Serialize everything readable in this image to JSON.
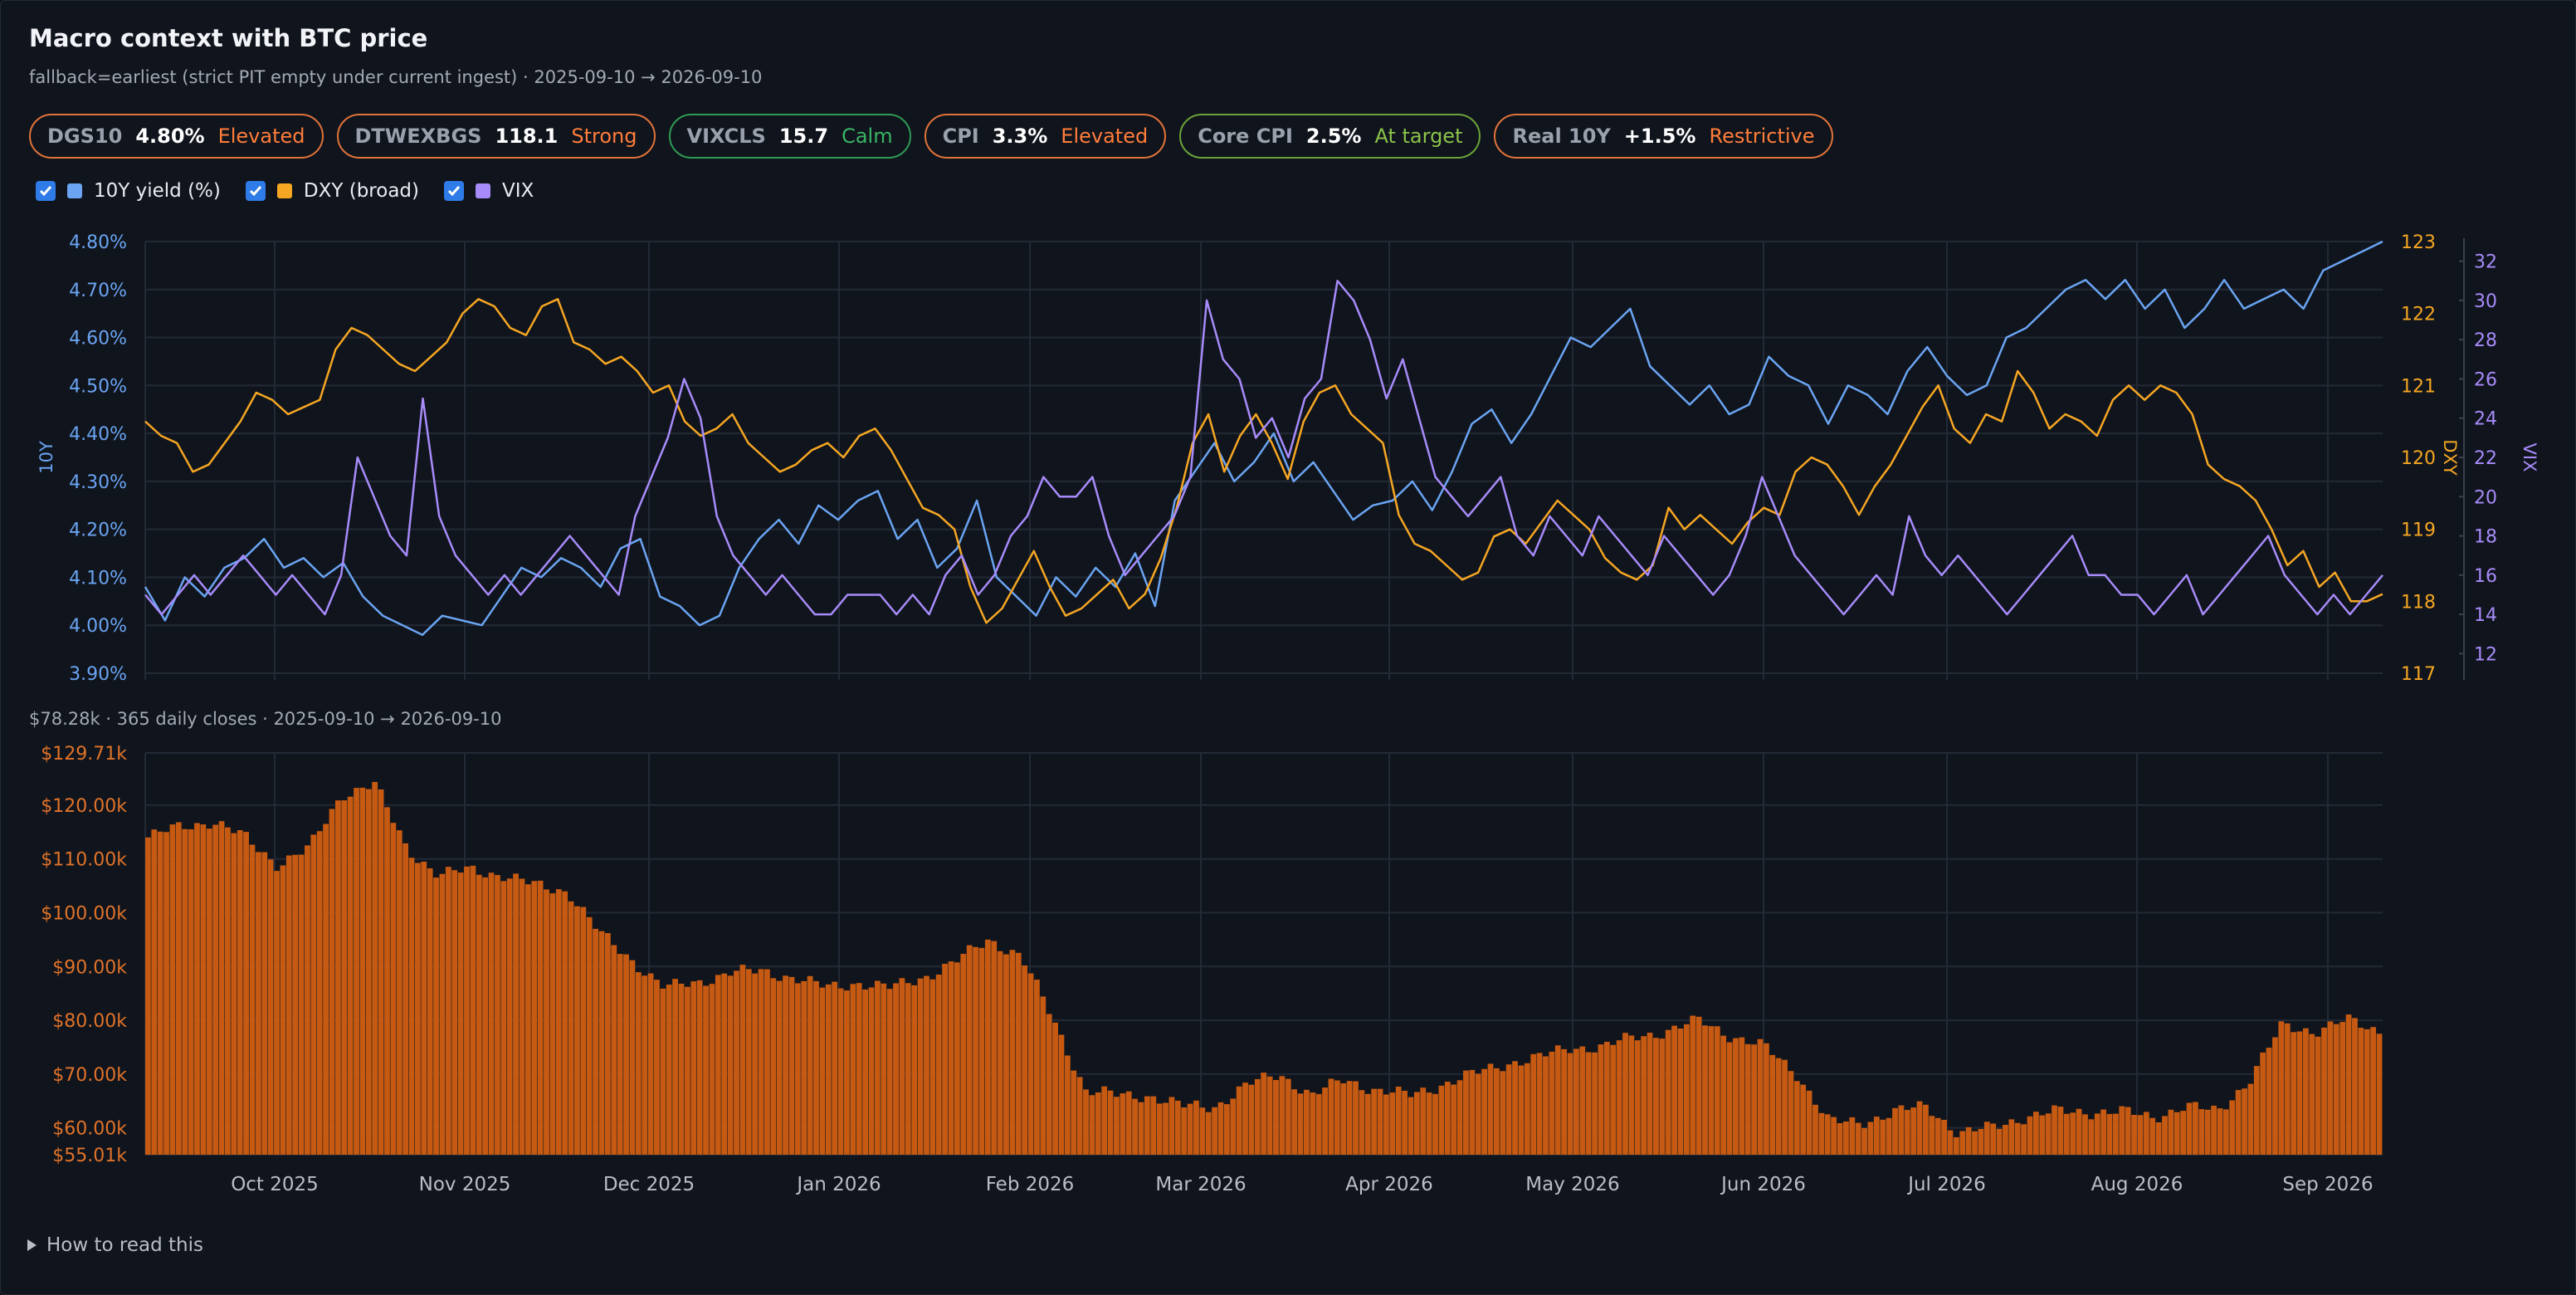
{
  "header": {
    "title": "Macro context with BTC price",
    "subtitle": "fallback=earliest (strict PIT empty under current ingest) · 2025-09-10 → 2026-09-10"
  },
  "pills": [
    {
      "key": "DGS10",
      "value": "4.80%",
      "status": "Elevated",
      "tone": "elevated"
    },
    {
      "key": "DTWEXBGS",
      "value": "118.1",
      "status": "Strong",
      "tone": "elevated"
    },
    {
      "key": "VIXCLS",
      "value": "15.7",
      "status": "Calm",
      "tone": "calm"
    },
    {
      "key": "CPI",
      "value": "3.3%",
      "status": "Elevated",
      "tone": "elevated"
    },
    {
      "key": "Core CPI",
      "value": "2.5%",
      "status": "At target",
      "tone": "target"
    },
    {
      "key": "Real 10Y",
      "value": "+1.5%",
      "status": "Restrictive",
      "tone": "elevated"
    }
  ],
  "legend": [
    {
      "label": "10Y yield (%)",
      "color": "#6aa4f2",
      "checked": true
    },
    {
      "label": "DXY (broad)",
      "color": "#f5a623",
      "checked": true
    },
    {
      "label": "VIX",
      "color": "#a78bfa",
      "checked": true
    }
  ],
  "btc_caption": "$78.28k · 365 daily closes · 2025-09-10 → 2026-09-10",
  "how_to_read": "How to read this",
  "colors": {
    "yield": "#6aa4f2",
    "dxy": "#f5a623",
    "vix": "#a78bfa",
    "btc": "#c65a12",
    "grid": "#222a36"
  },
  "chart_data": [
    {
      "type": "line",
      "x_start": "2025-09-10",
      "x_end": "2026-09-10",
      "x_ticks": [
        "Oct 2025",
        "Nov 2025",
        "Dec 2025",
        "Jan 2026",
        "Feb 2026",
        "Mar 2026",
        "Apr 2026",
        "May 2026",
        "Jun 2026",
        "Jul 2026",
        "Aug 2026",
        "Sep 2026"
      ],
      "axes": {
        "left": {
          "label": "10Y",
          "ylim": [
            3.9,
            4.8
          ],
          "ticks": [
            "3.90%",
            "4.00%",
            "4.10%",
            "4.20%",
            "4.30%",
            "4.40%",
            "4.50%",
            "4.60%",
            "4.70%",
            "4.80%"
          ]
        },
        "right1": {
          "label": "DXY",
          "ylim": [
            117,
            123
          ],
          "ticks": [
            "117",
            "118",
            "119",
            "120",
            "121",
            "122",
            "123"
          ]
        },
        "right2": {
          "label": "VIX",
          "ylim": [
            11,
            33
          ],
          "ticks": [
            "12",
            "14",
            "16",
            "18",
            "20",
            "22",
            "24",
            "26",
            "28",
            "30",
            "32"
          ]
        }
      },
      "series": [
        {
          "name": "10Y yield (%)",
          "axis": "left",
          "values": [
            4.08,
            4.01,
            4.1,
            4.06,
            4.12,
            4.14,
            4.18,
            4.12,
            4.14,
            4.1,
            4.13,
            4.06,
            4.02,
            4.0,
            3.98,
            4.02,
            4.01,
            4.0,
            4.06,
            4.12,
            4.1,
            4.14,
            4.12,
            4.08,
            4.16,
            4.18,
            4.06,
            4.04,
            4.0,
            4.02,
            4.12,
            4.18,
            4.22,
            4.17,
            4.25,
            4.22,
            4.26,
            4.28,
            4.18,
            4.22,
            4.12,
            4.16,
            4.26,
            4.1,
            4.06,
            4.02,
            4.1,
            4.06,
            4.12,
            4.08,
            4.15,
            4.04,
            4.26,
            4.32,
            4.38,
            4.3,
            4.34,
            4.4,
            4.3,
            4.34,
            4.28,
            4.22,
            4.25,
            4.26,
            4.3,
            4.24,
            4.32,
            4.42,
            4.45,
            4.38,
            4.44,
            4.52,
            4.6,
            4.58,
            4.62,
            4.66,
            4.54,
            4.5,
            4.46,
            4.5,
            4.44,
            4.46,
            4.56,
            4.52,
            4.5,
            4.42,
            4.5,
            4.48,
            4.44,
            4.53,
            4.58,
            4.52,
            4.48,
            4.5,
            4.6,
            4.62,
            4.66,
            4.7,
            4.72,
            4.68,
            4.72,
            4.66,
            4.7,
            4.62,
            4.66,
            4.72,
            4.66,
            4.68,
            4.7,
            4.66,
            4.74,
            4.76,
            4.78,
            4.8
          ]
        },
        {
          "name": "DXY (broad)",
          "axis": "right1",
          "values": [
            120.5,
            120.3,
            120.2,
            119.8,
            119.9,
            120.2,
            120.5,
            120.9,
            120.8,
            120.6,
            120.7,
            120.8,
            121.5,
            121.8,
            121.7,
            121.5,
            121.3,
            121.2,
            121.4,
            121.6,
            122.0,
            122.2,
            122.1,
            121.8,
            121.7,
            122.1,
            122.2,
            121.6,
            121.5,
            121.3,
            121.4,
            121.2,
            120.9,
            121.0,
            120.5,
            120.3,
            120.4,
            120.6,
            120.2,
            120.0,
            119.8,
            119.9,
            120.1,
            120.2,
            120.0,
            120.3,
            120.4,
            120.1,
            119.7,
            119.3,
            119.2,
            119.0,
            118.2,
            117.7,
            117.9,
            118.3,
            118.7,
            118.2,
            117.8,
            117.9,
            118.1,
            118.3,
            117.9,
            118.1,
            118.6,
            119.3,
            120.2,
            120.6,
            119.8,
            120.3,
            120.6,
            120.2,
            119.7,
            120.5,
            120.9,
            121.0,
            120.6,
            120.4,
            120.2,
            119.2,
            118.8,
            118.7,
            118.5,
            118.3,
            118.4,
            118.9,
            119.0,
            118.8,
            119.1,
            119.4,
            119.2,
            119.0,
            118.6,
            118.4,
            118.3,
            118.5,
            119.3,
            119.0,
            119.2,
            119.0,
            118.8,
            119.1,
            119.3,
            119.2,
            119.8,
            120.0,
            119.9,
            119.6,
            119.2,
            119.6,
            119.9,
            120.3,
            120.7,
            121.0,
            120.4,
            120.2,
            120.6,
            120.5,
            121.2,
            120.9,
            120.4,
            120.6,
            120.5,
            120.3,
            120.8,
            121.0,
            120.8,
            121.0,
            120.9,
            120.6,
            119.9,
            119.7,
            119.6,
            119.4,
            119.0,
            118.5,
            118.7,
            118.2,
            118.4,
            118.0,
            118.0,
            118.1
          ]
        },
        {
          "name": "VIX",
          "axis": "right2",
          "values": [
            15,
            14,
            15,
            16,
            15,
            16,
            17,
            16,
            15,
            16,
            15,
            14,
            16,
            22,
            20,
            18,
            17,
            25,
            19,
            17,
            16,
            15,
            16,
            15,
            16,
            17,
            18,
            17,
            16,
            15,
            19,
            21,
            23,
            26,
            24,
            19,
            17,
            16,
            15,
            16,
            15,
            14,
            14,
            15,
            15,
            15,
            14,
            15,
            14,
            16,
            17,
            15,
            16,
            18,
            19,
            21,
            20,
            20,
            21,
            18,
            16,
            17,
            18,
            19,
            21,
            30,
            27,
            26,
            23,
            24,
            22,
            25,
            26,
            31,
            30,
            28,
            25,
            27,
            24,
            21,
            20,
            19,
            20,
            21,
            18,
            17,
            19,
            18,
            17,
            19,
            18,
            17,
            16,
            18,
            17,
            16,
            15,
            16,
            18,
            21,
            19,
            17,
            16,
            15,
            14,
            15,
            16,
            15,
            19,
            17,
            16,
            17,
            16,
            15,
            14,
            15,
            16,
            17,
            18,
            16,
            16,
            15,
            15,
            14,
            15,
            16,
            14,
            15,
            16,
            17,
            18,
            16,
            15,
            14,
            15,
            14,
            15,
            16
          ]
        }
      ]
    },
    {
      "type": "bar",
      "name": "BTC daily close",
      "x_start": "2025-09-10",
      "x_end": "2026-09-10",
      "ylim": [
        55.01,
        129.71
      ],
      "yticks": [
        "$55.01k",
        "$60.00k",
        "$70.00k",
        "$80.00k",
        "$90.00k",
        "$100.00k",
        "$110.00k",
        "$120.00k",
        "$129.71k"
      ],
      "unit": "k USD",
      "weekly_closes": [
        114,
        116,
        117,
        114,
        109,
        112,
        122,
        124,
        112,
        107,
        108,
        107,
        105,
        104,
        96,
        91,
        86,
        87,
        89,
        89,
        88,
        86,
        87,
        86,
        88,
        91,
        95,
        92,
        80,
        67,
        66,
        66,
        64,
        64,
        68,
        70,
        66,
        69,
        67,
        66,
        68,
        70,
        72,
        73,
        75,
        75,
        77,
        78,
        80,
        77,
        75,
        70,
        61,
        61,
        63,
        64,
        59,
        60,
        62,
        63,
        63,
        63,
        62,
        64,
        63,
        69,
        79,
        78,
        80,
        78
      ]
    }
  ]
}
